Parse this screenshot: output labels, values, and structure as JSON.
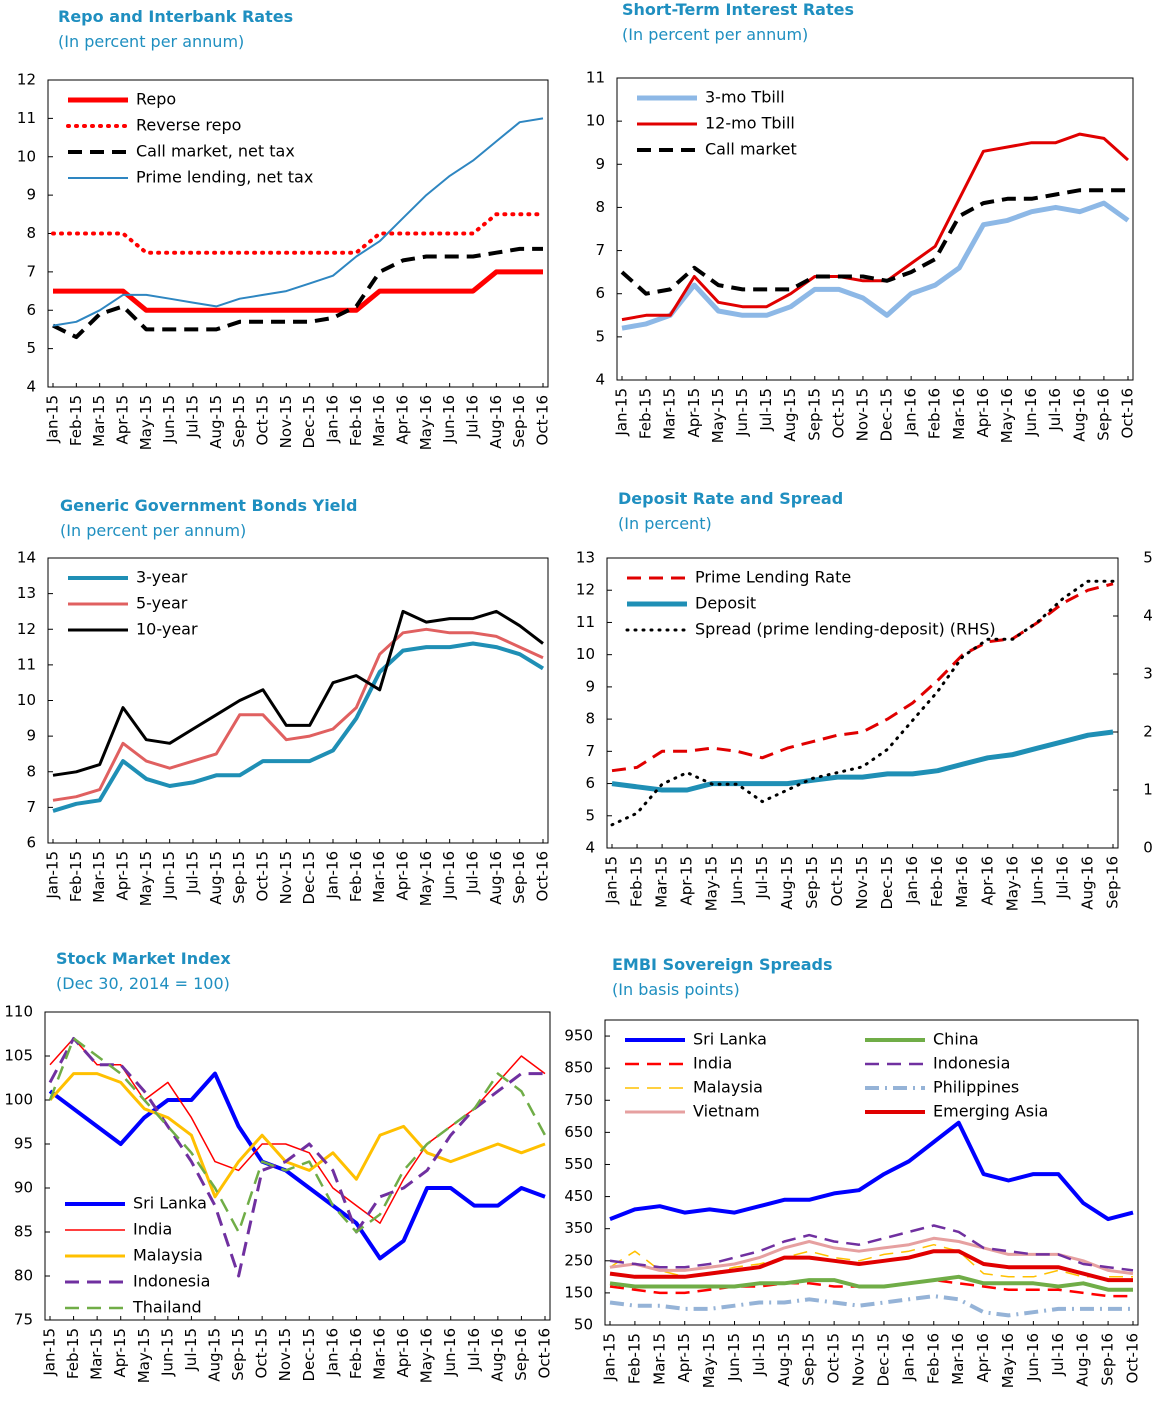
{
  "chart_data": [
    {
      "type": "line",
      "title": "Repo and Interbank Rates",
      "subtitle": "(In percent per annum)",
      "categories": [
        "Jan-15",
        "Feb-15",
        "Mar-15",
        "Apr-15",
        "May-15",
        "Jun-15",
        "Jul-15",
        "Aug-15",
        "Sep-15",
        "Oct-15",
        "Nov-15",
        "Dec-15",
        "Jan-16",
        "Feb-16",
        "Mar-16",
        "Apr-16",
        "May-16",
        "Jun-16",
        "Jul-16",
        "Aug-16",
        "Sep-16",
        "Oct-16"
      ],
      "ylim": [
        4,
        12
      ],
      "yticks": [
        4,
        5,
        6,
        7,
        8,
        9,
        10,
        11,
        12
      ],
      "legend": "upper left",
      "series": [
        {
          "name": "Repo",
          "color": "#ff0000",
          "dash": "solid",
          "linewidth": 5,
          "values": [
            6.5,
            6.5,
            6.5,
            6.5,
            6.0,
            6.0,
            6.0,
            6.0,
            6.0,
            6.0,
            6.0,
            6.0,
            6.0,
            6.0,
            6.5,
            6.5,
            6.5,
            6.5,
            6.5,
            7.0,
            7.0,
            7.0
          ]
        },
        {
          "name": "Reverse repo",
          "color": "#ff0000",
          "dash": "dotted",
          "linewidth": 4,
          "values": [
            8.0,
            8.0,
            8.0,
            8.0,
            7.5,
            7.5,
            7.5,
            7.5,
            7.5,
            7.5,
            7.5,
            7.5,
            7.5,
            7.5,
            8.0,
            8.0,
            8.0,
            8.0,
            8.0,
            8.5,
            8.5,
            8.5
          ]
        },
        {
          "name": "Call market, net tax",
          "color": "#000000",
          "dash": "dashed",
          "linewidth": 4,
          "values": [
            5.6,
            5.3,
            5.9,
            6.1,
            5.5,
            5.5,
            5.5,
            5.5,
            5.7,
            5.7,
            5.7,
            5.7,
            5.8,
            6.1,
            7.0,
            7.3,
            7.4,
            7.4,
            7.4,
            7.5,
            7.6,
            7.6
          ]
        },
        {
          "name": "Prime lending, net tax",
          "color": "#2e86c1",
          "dash": "solid",
          "linewidth": 2,
          "values": [
            5.6,
            5.7,
            6.0,
            6.4,
            6.4,
            6.3,
            6.2,
            6.1,
            6.3,
            6.4,
            6.5,
            6.7,
            6.9,
            7.4,
            7.8,
            8.4,
            9.0,
            9.5,
            9.9,
            10.4,
            10.9,
            11.0
          ]
        }
      ]
    },
    {
      "type": "line",
      "title": "Short-Term Interest Rates",
      "subtitle": "(In percent per annum)",
      "categories": [
        "Jan-15",
        "Feb-15",
        "Mar-15",
        "Apr-15",
        "May-15",
        "Jun-15",
        "Jul-15",
        "Aug-15",
        "Sep-15",
        "Oct-15",
        "Nov-15",
        "Dec-15",
        "Jan-16",
        "Feb-16",
        "Mar-16",
        "Apr-16",
        "May-16",
        "Jun-16",
        "Jul-16",
        "Aug-16",
        "Sep-16",
        "Oct-16"
      ],
      "ylim": [
        4,
        11
      ],
      "yticks": [
        4,
        5,
        6,
        7,
        8,
        9,
        10,
        11
      ],
      "legend": "upper left",
      "series": [
        {
          "name": "3-mo Tbill",
          "color": "#8db8e6",
          "dash": "solid",
          "linewidth": 5,
          "values": [
            5.2,
            5.3,
            5.5,
            6.2,
            5.6,
            5.5,
            5.5,
            5.7,
            6.1,
            6.1,
            5.9,
            5.5,
            6.0,
            6.2,
            6.6,
            7.6,
            7.7,
            7.9,
            8.0,
            7.9,
            8.1,
            7.7
          ]
        },
        {
          "name": "12-mo Tbill",
          "color": "#e00000",
          "dash": "solid",
          "linewidth": 3,
          "values": [
            5.4,
            5.5,
            5.5,
            6.4,
            5.8,
            5.7,
            5.7,
            6.0,
            6.4,
            6.4,
            6.3,
            6.3,
            6.7,
            7.1,
            8.2,
            9.3,
            9.4,
            9.5,
            9.5,
            9.7,
            9.6,
            9.1
          ]
        },
        {
          "name": "Call market",
          "color": "#000000",
          "dash": "dashed",
          "linewidth": 4,
          "values": [
            6.5,
            6.0,
            6.1,
            6.6,
            6.2,
            6.1,
            6.1,
            6.1,
            6.4,
            6.4,
            6.4,
            6.3,
            6.5,
            6.8,
            7.8,
            8.1,
            8.2,
            8.2,
            8.3,
            8.4,
            8.4,
            8.4
          ]
        }
      ]
    },
    {
      "type": "line",
      "title": "Generic Government Bonds Yield",
      "subtitle": "(In percent per annum)",
      "categories": [
        "Jan-15",
        "Feb-15",
        "Mar-15",
        "Apr-15",
        "May-15",
        "Jun-15",
        "Jul-15",
        "Aug-15",
        "Sep-15",
        "Oct-15",
        "Nov-15",
        "Dec-15",
        "Jan-16",
        "Feb-16",
        "Mar-16",
        "Apr-16",
        "May-16",
        "Jun-16",
        "Jul-16",
        "Aug-16",
        "Sep-16",
        "Oct-16"
      ],
      "ylim": [
        6,
        14
      ],
      "yticks": [
        6,
        7,
        8,
        9,
        10,
        11,
        12,
        13,
        14
      ],
      "legend": "upper left",
      "series": [
        {
          "name": "3-year",
          "color": "#1f8fb5",
          "dash": "solid",
          "linewidth": 4,
          "values": [
            6.9,
            7.1,
            7.2,
            8.3,
            7.8,
            7.6,
            7.7,
            7.9,
            7.9,
            8.3,
            8.3,
            8.3,
            8.6,
            9.5,
            10.8,
            11.4,
            11.5,
            11.5,
            11.6,
            11.5,
            11.3,
            10.9
          ]
        },
        {
          "name": "5-year",
          "color": "#e06060",
          "dash": "solid",
          "linewidth": 3,
          "values": [
            7.2,
            7.3,
            7.5,
            8.8,
            8.3,
            8.1,
            8.3,
            8.5,
            9.6,
            9.6,
            8.9,
            9.0,
            9.2,
            9.8,
            11.3,
            11.9,
            12.0,
            11.9,
            11.9,
            11.8,
            11.5,
            11.2
          ]
        },
        {
          "name": "10-year",
          "color": "#000000",
          "dash": "solid",
          "linewidth": 3,
          "values": [
            7.9,
            8.0,
            8.2,
            9.8,
            8.9,
            8.8,
            9.2,
            9.6,
            10.0,
            10.3,
            9.3,
            9.3,
            10.5,
            10.7,
            10.3,
            12.5,
            12.2,
            12.3,
            12.3,
            12.5,
            12.1,
            11.6
          ]
        }
      ]
    },
    {
      "type": "line",
      "title": "Deposit Rate and Spread",
      "subtitle": "(In percent)",
      "categories": [
        "Jan-15",
        "Feb-15",
        "Mar-15",
        "Apr-15",
        "May-15",
        "Jun-15",
        "Jul-15",
        "Aug-15",
        "Sep-15",
        "Oct-15",
        "Nov-15",
        "Dec-15",
        "Jan-16",
        "Feb-16",
        "Mar-16",
        "Apr-16",
        "May-16",
        "Jun-16",
        "Jul-16",
        "Aug-16",
        "Sep-16"
      ],
      "ylim": [
        4,
        13
      ],
      "yticks": [
        4,
        5,
        6,
        7,
        8,
        9,
        10,
        11,
        12,
        13
      ],
      "y2lim": [
        0,
        5
      ],
      "y2ticks": [
        0,
        1,
        2,
        3,
        4,
        5
      ],
      "legend": "upper left",
      "series": [
        {
          "name": "Prime Lending Rate",
          "color": "#e00000",
          "dash": "dashed",
          "linewidth": 3,
          "values": [
            6.4,
            6.5,
            7.0,
            7.0,
            7.1,
            7.0,
            6.8,
            7.1,
            7.3,
            7.5,
            7.6,
            8.0,
            8.5,
            9.2,
            10.0,
            10.4,
            10.5,
            11.0,
            11.6,
            12.0,
            12.2
          ]
        },
        {
          "name": "Deposit",
          "color": "#1f8fb5",
          "dash": "solid",
          "linewidth": 5,
          "values": [
            6.0,
            5.9,
            5.8,
            5.8,
            6.0,
            6.0,
            6.0,
            6.0,
            6.1,
            6.2,
            6.2,
            6.3,
            6.3,
            6.4,
            6.6,
            6.8,
            6.9,
            7.1,
            7.3,
            7.5,
            7.6
          ]
        },
        {
          "name": "Spread (prime lending-deposit) (RHS)",
          "color": "#000000",
          "dash": "dotted",
          "linewidth": 3,
          "axis": "y2",
          "values": [
            0.4,
            0.6,
            1.1,
            1.3,
            1.1,
            1.1,
            0.8,
            1.0,
            1.2,
            1.3,
            1.4,
            1.7,
            2.2,
            2.7,
            3.3,
            3.6,
            3.6,
            3.9,
            4.3,
            4.6,
            4.6
          ]
        }
      ]
    },
    {
      "type": "line",
      "title": "Stock Market Index",
      "subtitle": "(Dec 30, 2014 = 100)",
      "categories": [
        "Jan-15",
        "Feb-15",
        "Mar-15",
        "Apr-15",
        "May-15",
        "Jun-15",
        "Jul-15",
        "Aug-15",
        "Sep-15",
        "Oct-15",
        "Nov-15",
        "Dec-15",
        "Jan-16",
        "Feb-16",
        "Mar-16",
        "Apr-16",
        "May-16",
        "Jun-16",
        "Jul-16",
        "Aug-16",
        "Sep-16",
        "Oct-16"
      ],
      "ylim": [
        75,
        110
      ],
      "yticks": [
        75,
        80,
        85,
        90,
        95,
        100,
        105,
        110
      ],
      "legend": "lower left",
      "series": [
        {
          "name": "Sri Lanka",
          "color": "#0000ff",
          "dash": "solid",
          "linewidth": 4,
          "values": [
            101,
            99,
            97,
            95,
            98,
            100,
            100,
            103,
            97,
            93,
            92,
            90,
            88,
            86,
            82,
            84,
            90,
            90,
            88,
            88,
            90,
            89
          ]
        },
        {
          "name": "India",
          "color": "#ff0000",
          "dash": "solid",
          "linewidth": 1.5,
          "values": [
            104,
            107,
            104,
            104,
            100,
            102,
            98,
            93,
            92,
            95,
            95,
            94,
            90,
            88,
            86,
            91,
            95,
            97,
            99,
            102,
            105,
            103
          ]
        },
        {
          "name": "Malaysia",
          "color": "#ffc000",
          "dash": "solid",
          "linewidth": 3,
          "values": [
            100,
            103,
            103,
            102,
            99,
            98,
            96,
            89,
            93,
            96,
            93,
            92,
            94,
            91,
            96,
            97,
            94,
            93,
            94,
            95,
            94,
            95
          ]
        },
        {
          "name": "Indonesia",
          "color": "#7030a0",
          "dash": "dashed",
          "linewidth": 3,
          "values": [
            102,
            107,
            104,
            104,
            101,
            97,
            93,
            88,
            80,
            92,
            93,
            95,
            92,
            85,
            89,
            90,
            92,
            96,
            99,
            101,
            103,
            103
          ]
        },
        {
          "name": "Thailand",
          "color": "#70ad47",
          "dash": "dashed",
          "linewidth": 2.5,
          "values": [
            100,
            107,
            105,
            103,
            100,
            97,
            94,
            90,
            85,
            93,
            92,
            93,
            88,
            85,
            87,
            92,
            95,
            97,
            99,
            103,
            101,
            96
          ]
        }
      ]
    },
    {
      "type": "line",
      "title": "EMBI Sovereign Spreads",
      "subtitle": "(In basis points)",
      "categories": [
        "Jan-15",
        "Feb-15",
        "Mar-15",
        "Apr-15",
        "May-15",
        "Jun-15",
        "Jul-15",
        "Aug-15",
        "Sep-15",
        "Oct-15",
        "Nov-15",
        "Dec-15",
        "Jan-16",
        "Feb-16",
        "Mar-16",
        "Apr-16",
        "May-16",
        "Jun-16",
        "Jul-16",
        "Aug-16",
        "Sep-16",
        "Oct-16"
      ],
      "ylim": [
        50,
        1000
      ],
      "yticks": [
        50,
        150,
        250,
        350,
        450,
        550,
        650,
        750,
        850,
        950
      ],
      "legend": "upper left",
      "legend_columns": 2,
      "series": [
        {
          "name": "Sri Lanka",
          "color": "#0000ff",
          "dash": "solid",
          "linewidth": 4,
          "values": [
            380,
            410,
            420,
            400,
            410,
            400,
            420,
            440,
            440,
            460,
            470,
            520,
            560,
            620,
            680,
            520,
            500,
            520,
            520,
            430,
            380,
            400
          ]
        },
        {
          "name": "India",
          "color": "#ff0000",
          "dash": "dashed",
          "linewidth": 2.5,
          "values": [
            170,
            160,
            150,
            150,
            160,
            170,
            170,
            180,
            180,
            170,
            170,
            170,
            180,
            190,
            180,
            170,
            160,
            160,
            160,
            150,
            140,
            140
          ]
        },
        {
          "name": "Malaysia",
          "color": "#ffc000",
          "dash": "dashed",
          "linewidth": 1.5,
          "values": [
            230,
            280,
            220,
            200,
            210,
            230,
            240,
            260,
            280,
            260,
            250,
            270,
            280,
            300,
            280,
            210,
            200,
            200,
            220,
            200,
            200,
            200
          ]
        },
        {
          "name": "Vietnam",
          "color": "#e6a0a0",
          "dash": "solid",
          "linewidth": 3,
          "values": [
            230,
            240,
            220,
            220,
            230,
            240,
            260,
            290,
            310,
            290,
            280,
            290,
            300,
            320,
            310,
            290,
            270,
            270,
            270,
            250,
            220,
            210
          ]
        },
        {
          "name": "China",
          "color": "#70ad47",
          "dash": "solid",
          "linewidth": 4,
          "values": [
            180,
            170,
            170,
            170,
            170,
            170,
            180,
            180,
            190,
            190,
            170,
            170,
            180,
            190,
            200,
            180,
            180,
            180,
            170,
            180,
            160,
            160
          ]
        },
        {
          "name": "Indonesia",
          "color": "#7030a0",
          "dash": "dashed",
          "linewidth": 2.5,
          "values": [
            250,
            240,
            230,
            230,
            240,
            260,
            280,
            310,
            330,
            310,
            300,
            320,
            340,
            360,
            340,
            290,
            280,
            270,
            270,
            240,
            230,
            220
          ]
        },
        {
          "name": "Philippines",
          "color": "#95b3d7",
          "dash": "dashdot",
          "linewidth": 4,
          "values": [
            120,
            110,
            110,
            100,
            100,
            110,
            120,
            120,
            130,
            120,
            110,
            120,
            130,
            140,
            130,
            90,
            80,
            90,
            100,
            100,
            100,
            100
          ]
        },
        {
          "name": "Emerging Asia",
          "color": "#e00000",
          "dash": "solid",
          "linewidth": 4,
          "values": [
            210,
            200,
            200,
            200,
            210,
            220,
            230,
            260,
            260,
            250,
            240,
            250,
            260,
            280,
            280,
            240,
            230,
            230,
            230,
            210,
            190,
            190
          ]
        }
      ]
    }
  ]
}
